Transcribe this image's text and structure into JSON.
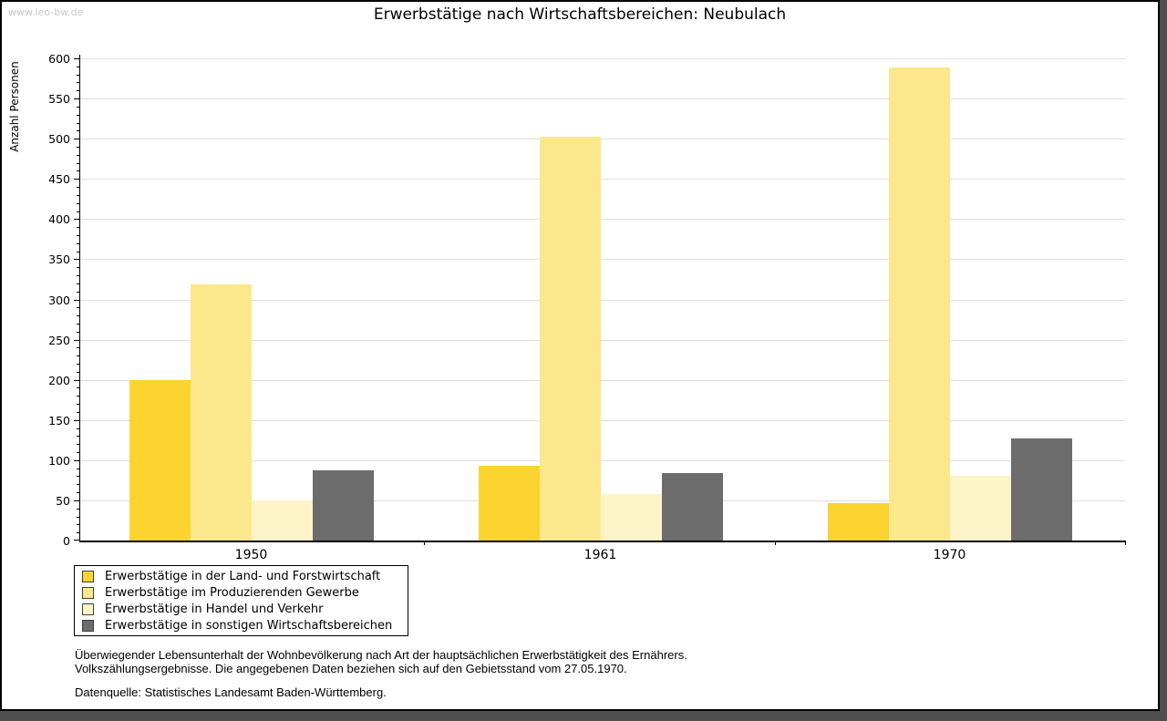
{
  "watermark": "www.leo-bw.de",
  "title": "Erwerbstätige nach Wirtschaftsbereichen: Neubulach",
  "chart_data": {
    "type": "bar",
    "title": "Erwerbstätige nach Wirtschaftsbereichen: Neubulach",
    "categories": [
      "1950",
      "1961",
      "1970"
    ],
    "series": [
      {
        "name": "Erwerbstätige in der Land- und Forstwirtschaft",
        "color": "#FCD42F",
        "values": [
          200,
          93,
          46
        ]
      },
      {
        "name": "Erwerbstätige im Produzierenden Gewerbe",
        "color": "#FCE88C",
        "values": [
          319,
          502,
          589
        ]
      },
      {
        "name": "Erwerbstätige in Handel und Verkehr",
        "color": "#FCF3C6",
        "values": [
          50,
          58,
          81
        ]
      },
      {
        "name": "Erwerbstätige in sonstigen Wirtschaftsbereichen",
        "color": "#6C6C6C",
        "values": [
          87,
          84,
          127
        ]
      }
    ],
    "xlabel": "",
    "ylabel": "Anzahl Personen",
    "ylim": [
      0,
      600
    ],
    "yticks": [
      0,
      50,
      100,
      150,
      200,
      250,
      300,
      350,
      400,
      450,
      500,
      550,
      600
    ],
    "ytick_major": 50,
    "ytick_minor": 10,
    "grid": true,
    "gridline_color": "#E0E0E0",
    "legend_position": "bottom-left"
  },
  "notes": {
    "line1": "Überwiegender Lebensunterhalt der Wohnbevölkerung nach Art der hauptsächlichen Erwerbstätigkeit des Ernährers.",
    "line2": "Volkszählungsergebnisse. Die angegebenen Daten beziehen sich auf den Gebietsstand vom 27.05.1970.",
    "source": "Datenquelle: Statistisches Landesamt Baden-Württemberg."
  }
}
